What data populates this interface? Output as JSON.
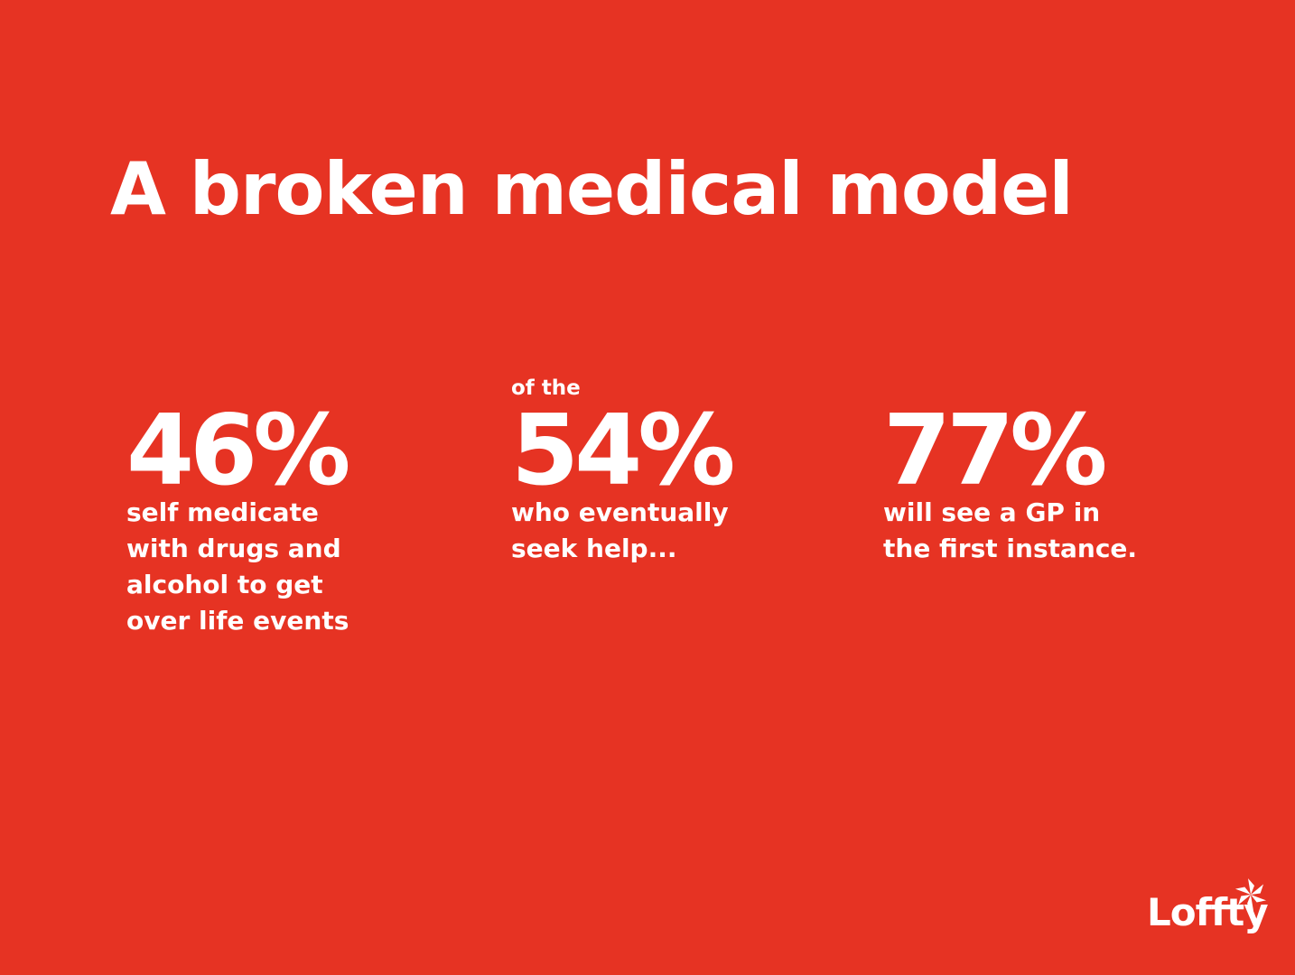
{
  "slide": {
    "title": "A broken medical model",
    "background_color": "#e63323",
    "text_color": "#ffffff"
  },
  "stats": [
    {
      "pre": "",
      "value": "46%",
      "description_lines": [
        "self medicate",
        "with drugs and",
        "alcohol to get",
        "over life events"
      ]
    },
    {
      "pre": "of the",
      "value": "54%",
      "description_lines": [
        "who eventually",
        "seek help..."
      ]
    },
    {
      "pre": "",
      "value": "77%",
      "description_lines": [
        "will see a GP in",
        "the first instance."
      ]
    }
  ],
  "logo": {
    "text": "Loffty",
    "icon": "pinwheel-icon"
  }
}
